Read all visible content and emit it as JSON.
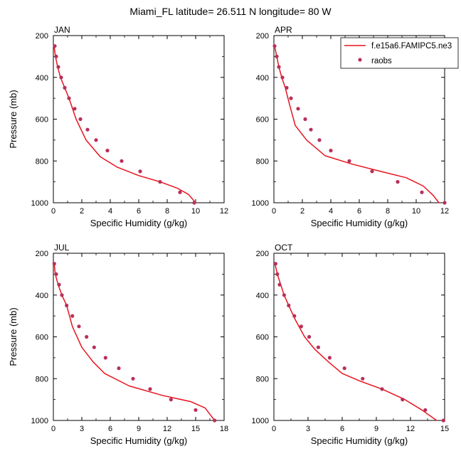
{
  "title": "Miami_FL  latitude= 26.511 N longitude= 80 W",
  "colors": {
    "model": "#e8141e",
    "obs": "#b8305a",
    "axis": "#000000"
  },
  "legend": {
    "placement": "top-right",
    "model_label": "f.e15a6.FAMIPC5.ne3",
    "obs_label": "raobs"
  },
  "chart_data": [
    {
      "type": "line",
      "panel": "JAN",
      "xlabel": "Specific Humidity (g/kg)",
      "ylabel": "Pressure (mb)",
      "xlim": [
        0,
        12
      ],
      "ylim": [
        1000,
        200
      ],
      "xticks": [
        0,
        2,
        4,
        6,
        8,
        10,
        12
      ],
      "yticks": [
        200,
        400,
        600,
        800,
        1000
      ],
      "series": [
        {
          "name": "f.e15a6.FAMIPC5.ne3",
          "kind": "line",
          "x": [
            0.05,
            0.15,
            0.3,
            0.5,
            0.8,
            1.1,
            1.6,
            2.3,
            3.3,
            4.5,
            6.0,
            7.5,
            8.7,
            9.5,
            10.0
          ],
          "y": [
            250,
            300,
            350,
            400,
            450,
            500,
            600,
            700,
            780,
            830,
            870,
            900,
            930,
            960,
            1000
          ]
        },
        {
          "name": "raobs",
          "kind": "scatter",
          "x": [
            0.1,
            0.2,
            0.35,
            0.55,
            0.8,
            1.1,
            1.5,
            1.9,
            2.4,
            3.0,
            3.8,
            4.8,
            6.1,
            7.5,
            8.9,
            9.9
          ],
          "y": [
            250,
            300,
            350,
            400,
            450,
            500,
            550,
            600,
            650,
            700,
            750,
            800,
            850,
            900,
            950,
            1000
          ]
        }
      ]
    },
    {
      "type": "line",
      "panel": "APR",
      "xlabel": "Specific Humidity (g/kg)",
      "ylabel": "",
      "xlim": [
        0,
        12
      ],
      "ylim": [
        1000,
        200
      ],
      "xticks": [
        0,
        2,
        4,
        6,
        8,
        10,
        12
      ],
      "yticks": [
        200,
        400,
        600,
        800,
        1000
      ],
      "series": [
        {
          "name": "f.e15a6.FAMIPC5.ne3",
          "kind": "line",
          "x": [
            0.05,
            0.2,
            0.35,
            0.55,
            0.8,
            1.1,
            1.5,
            2.3,
            3.6,
            5.5,
            7.5,
            9.3,
            10.5,
            11.2,
            11.6
          ],
          "y": [
            250,
            300,
            350,
            400,
            450,
            530,
            630,
            700,
            775,
            815,
            850,
            880,
            920,
            965,
            1000
          ]
        },
        {
          "name": "raobs",
          "kind": "scatter",
          "x": [
            0.05,
            0.2,
            0.35,
            0.6,
            0.9,
            1.2,
            1.7,
            2.2,
            2.6,
            3.2,
            4.0,
            5.3,
            6.9,
            8.7,
            10.4,
            12.0
          ],
          "y": [
            250,
            300,
            350,
            400,
            450,
            500,
            550,
            600,
            650,
            700,
            750,
            800,
            850,
            900,
            950,
            1000
          ]
        }
      ]
    },
    {
      "type": "line",
      "panel": "JUL",
      "xlabel": "Specific Humidity (g/kg)",
      "ylabel": "Pressure (mb)",
      "xlim": [
        0,
        18
      ],
      "ylim": [
        1000,
        200
      ],
      "xticks": [
        0,
        3,
        6,
        9,
        12,
        15,
        18
      ],
      "yticks": [
        200,
        400,
        600,
        800,
        1000
      ],
      "series": [
        {
          "name": "f.e15a6.FAMIPC5.ne3",
          "kind": "line",
          "x": [
            0.1,
            0.2,
            0.5,
            0.9,
            1.4,
            2.0,
            3.0,
            4.2,
            5.4,
            8.0,
            11.5,
            14.5,
            16.0,
            16.5,
            17.0
          ],
          "y": [
            250,
            300,
            350,
            400,
            450,
            550,
            650,
            720,
            775,
            835,
            880,
            910,
            940,
            970,
            1000
          ]
        },
        {
          "name": "raobs",
          "kind": "scatter",
          "x": [
            0.1,
            0.3,
            0.6,
            0.9,
            1.4,
            2.0,
            2.7,
            3.5,
            4.3,
            5.5,
            6.9,
            8.4,
            10.2,
            12.4,
            15.0,
            17.0
          ],
          "y": [
            250,
            300,
            350,
            400,
            450,
            500,
            550,
            600,
            650,
            700,
            750,
            800,
            850,
            900,
            950,
            1000
          ]
        }
      ]
    },
    {
      "type": "line",
      "panel": "OCT",
      "xlabel": "Specific Humidity (g/kg)",
      "ylabel": "",
      "xlim": [
        0,
        15
      ],
      "ylim": [
        1000,
        200
      ],
      "xticks": [
        0,
        3,
        6,
        9,
        12,
        15
      ],
      "yticks": [
        200,
        400,
        600,
        800,
        1000
      ],
      "series": [
        {
          "name": "f.e15a6.FAMIPC5.ne3",
          "kind": "line",
          "x": [
            0.1,
            0.3,
            0.6,
            0.9,
            1.3,
            1.9,
            2.7,
            3.6,
            4.8,
            6.0,
            7.5,
            9.5,
            11.5,
            13.0,
            14.3
          ],
          "y": [
            250,
            300,
            350,
            400,
            450,
            520,
            600,
            660,
            720,
            775,
            810,
            850,
            900,
            950,
            1000
          ]
        },
        {
          "name": "raobs",
          "kind": "scatter",
          "x": [
            0.15,
            0.3,
            0.5,
            0.9,
            1.3,
            1.8,
            2.4,
            3.1,
            3.9,
            4.9,
            6.2,
            7.8,
            9.5,
            11.3,
            13.3,
            14.9
          ],
          "y": [
            250,
            300,
            350,
            400,
            450,
            500,
            550,
            600,
            650,
            700,
            750,
            800,
            850,
            900,
            950,
            1000
          ]
        }
      ]
    }
  ]
}
